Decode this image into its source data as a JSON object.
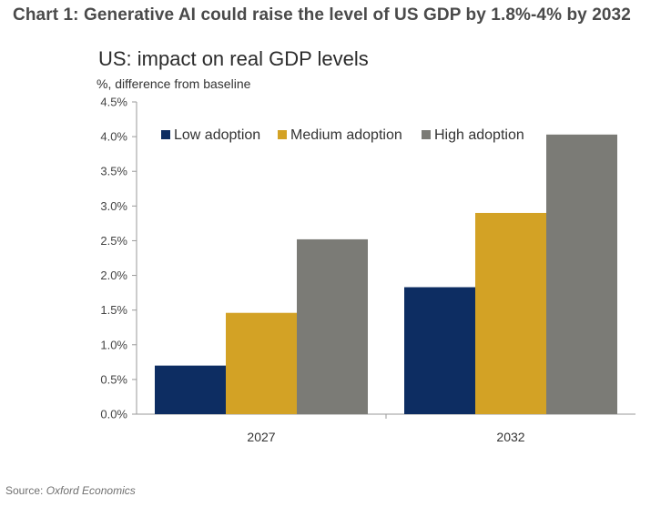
{
  "headline": "Chart 1: Generative AI could raise the level of US GDP by 1.8%-4% by 2032",
  "source_label": "Source: ",
  "source_name": "Oxford Economics",
  "chart_data": {
    "type": "bar",
    "title": "US: impact on real GDP levels",
    "ylabel": "%, difference from baseline",
    "xlabel": "",
    "categories": [
      "2027",
      "2032"
    ],
    "series": [
      {
        "name": "Low adoption",
        "color": "#0d2d62",
        "values": [
          0.7,
          1.83
        ]
      },
      {
        "name": "Medium adoption",
        "color": "#d3a225",
        "values": [
          1.46,
          2.9
        ]
      },
      {
        "name": "High adoption",
        "color": "#7b7b76",
        "values": [
          2.52,
          4.03
        ]
      }
    ],
    "ylim": [
      0,
      4.5
    ],
    "yticks": [
      "0.0%",
      "0.5%",
      "1.0%",
      "1.5%",
      "2.0%",
      "2.5%",
      "3.0%",
      "3.5%",
      "4.0%",
      "4.5%"
    ],
    "ytick_values": [
      0,
      0.5,
      1.0,
      1.5,
      2.0,
      2.5,
      3.0,
      3.5,
      4.0,
      4.5
    ],
    "grid": false,
    "legend": "top"
  }
}
